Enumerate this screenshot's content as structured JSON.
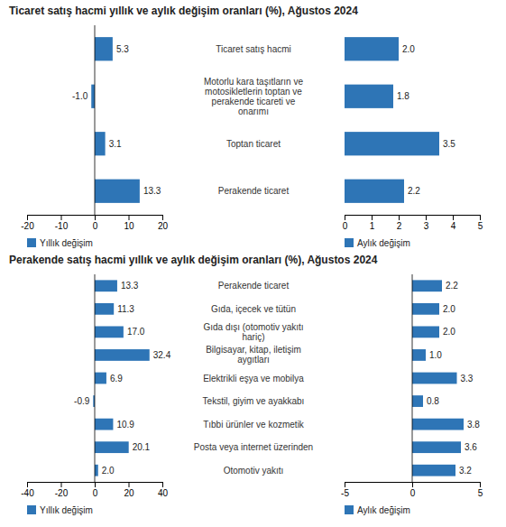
{
  "chart_data": [
    {
      "type": "bar",
      "orientation": "horizontal",
      "title": "Ticaret satış hacmi yıllık ve aylık değişim oranları (%), Ağustos 2024",
      "categories": [
        "Ticaret satış hacmi",
        "Motorlu kara taşıtların ve\nmotosikletlerin toptan ve\nperakende ticareti ve\nonarımı",
        "Toptan ticaret",
        "Perakende ticaret"
      ],
      "series": [
        {
          "name": "Yıllık değişim",
          "color": "#2e75b6",
          "values": [
            5.3,
            -1.0,
            3.1,
            13.3
          ],
          "value_labels": [
            "5.3",
            "-1.0",
            "3.1",
            "13.3"
          ]
        },
        {
          "name": "Aylık değişim",
          "color": "#2e75b6",
          "axis": "x2",
          "values": [
            2.0,
            1.8,
            3.5,
            2.2
          ],
          "value_labels": [
            "2.0",
            "1.8",
            "3.5",
            "2.2"
          ]
        }
      ],
      "xlim": [
        -20,
        20
      ],
      "xticks": [
        -20,
        -10,
        0,
        10,
        20
      ],
      "x2lim": [
        0,
        5
      ],
      "x2ticks": [
        0,
        1,
        2,
        3,
        4,
        5
      ],
      "data_labels": true,
      "legend": "bottom"
    },
    {
      "type": "bar",
      "orientation": "horizontal",
      "title": "Perakende satış hacmi yıllık ve aylık değişim oranları (%), Ağustos 2024",
      "categories": [
        "Perakende ticaret",
        "Gıda, içecek ve tütün",
        "Gıda dışı (otomotiv yakıtı\nhariç)",
        "Bilgisayar, kitap, iletişim\naygıtları",
        "Elektrikli eşya ve mobilya",
        "Tekstil, giyim ve ayakkabı",
        "Tıbbi ürünler ve kozmetik",
        "Posta veya internet üzerinden",
        "Otomotiv yakıtı"
      ],
      "series": [
        {
          "name": "Yıllık değişim",
          "color": "#2e75b6",
          "values": [
            13.3,
            11.3,
            17.0,
            32.4,
            6.9,
            -0.9,
            10.9,
            20.1,
            2.0
          ],
          "value_labels": [
            "13.3",
            "11.3",
            "17.0",
            "32.4",
            "6.9",
            "-0.9",
            "10.9",
            "20.1",
            "2.0"
          ]
        },
        {
          "name": "Aylık değişim",
          "color": "#2e75b6",
          "axis": "x2",
          "values": [
            2.2,
            2.0,
            2.0,
            1.0,
            3.3,
            0.8,
            3.8,
            3.6,
            3.2
          ],
          "value_labels": [
            "2.2",
            "2.0",
            "2.0",
            "1.0",
            "3.3",
            "0.8",
            "3.8",
            "3.6",
            "3.2"
          ]
        }
      ],
      "xlim": [
        -40,
        40
      ],
      "xticks": [
        -40,
        -20,
        0,
        20,
        40
      ],
      "x2lim": [
        -5,
        5
      ],
      "x2ticks": [
        -5,
        0,
        5
      ],
      "data_labels": true,
      "legend": "bottom"
    }
  ]
}
